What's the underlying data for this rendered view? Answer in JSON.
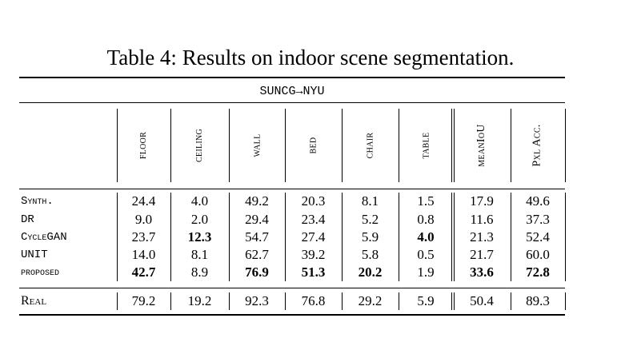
{
  "caption": "Table 4: Results on indoor scene segmentation.",
  "subheader": "SUNCG→NYU",
  "columns": [
    "floor",
    "ceiling",
    "wall",
    "bed",
    "chair",
    "table",
    "meanIoU",
    "Pxl Acc."
  ],
  "rows": [
    {
      "label": "Synth.",
      "values": [
        "24.4",
        "4.0",
        "49.2",
        "20.3",
        "8.1",
        "1.5",
        "17.9",
        "49.6"
      ],
      "bold": []
    },
    {
      "label": "DR",
      "values": [
        "9.0",
        "2.0",
        "29.4",
        "23.4",
        "5.2",
        "0.8",
        "11.6",
        "37.3"
      ],
      "bold": []
    },
    {
      "label": "CycleGAN",
      "values": [
        "23.7",
        "12.3",
        "54.7",
        "27.4",
        "5.9",
        "4.0",
        "21.3",
        "52.4"
      ],
      "bold": [
        1,
        5
      ]
    },
    {
      "label": "UNIT",
      "values": [
        "14.0",
        "8.1",
        "62.7",
        "39.2",
        "5.8",
        "0.5",
        "21.7",
        "60.0"
      ],
      "bold": []
    },
    {
      "label": "proposed",
      "values": [
        "42.7",
        "8.9",
        "76.9",
        "51.3",
        "20.2",
        "1.9",
        "33.6",
        "72.8"
      ],
      "bold": [
        0,
        2,
        3,
        4,
        6,
        7
      ]
    }
  ],
  "real_row": {
    "label": "Real",
    "values": [
      "79.2",
      "19.2",
      "92.3",
      "76.8",
      "29.2",
      "5.9",
      "50.4",
      "89.3"
    ]
  }
}
